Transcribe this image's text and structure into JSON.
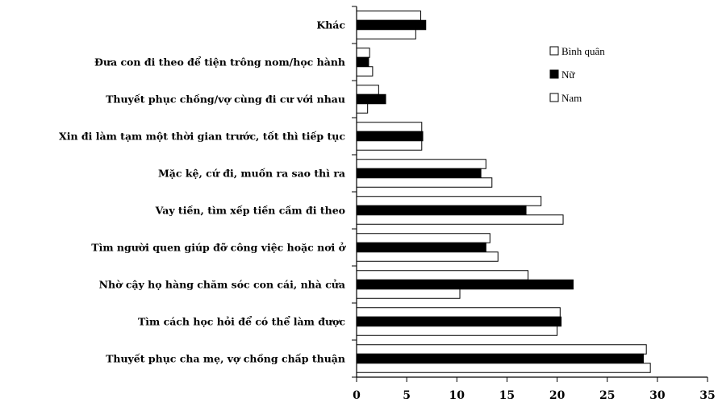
{
  "chart_data": {
    "type": "bar",
    "orientation": "horizontal",
    "categories": [
      "Thuyết phục cha mẹ, vợ chồng chấp thuận",
      "Tìm cách học hỏi để có thể làm được",
      "Nhờ cậy họ hàng chăm sóc con cái, nhà cửa",
      "Tìm người quen giúp đỡ công việc hoặc nơi ở",
      "Vay tiền, tìm xếp tiền cầm đi theo",
      "Mặc kệ, cứ đi, muốn ra sao thì ra",
      "Xin đi làm tạm một thời gian trước, tốt thì tiếp tục",
      "Thuyết phục chồng/vợ cùng đi cư với nhau",
      "Đưa con đi theo để tiện trông nom/học hành",
      "Khác"
    ],
    "series": [
      {
        "name": "Bình quân",
        "color": "#ffffff",
        "values": [
          28.9,
          20.3,
          17.1,
          13.3,
          18.4,
          12.9,
          6.5,
          2.2,
          1.3,
          6.4
        ]
      },
      {
        "name": "Nữ",
        "color": "#000000",
        "values": [
          28.6,
          20.4,
          21.6,
          12.9,
          16.9,
          12.4,
          6.6,
          2.9,
          1.2,
          6.9
        ]
      },
      {
        "name": "Nam",
        "color": "#ffffff",
        "values": [
          29.3,
          20.0,
          10.3,
          14.1,
          20.6,
          13.5,
          6.5,
          1.1,
          1.6,
          5.9
        ]
      }
    ],
    "xlim": [
      0,
      35
    ],
    "xticks": [
      "0",
      "5",
      "10",
      "15",
      "20",
      "25",
      "30",
      "35"
    ],
    "grid": false,
    "legend_position": "top-right"
  }
}
